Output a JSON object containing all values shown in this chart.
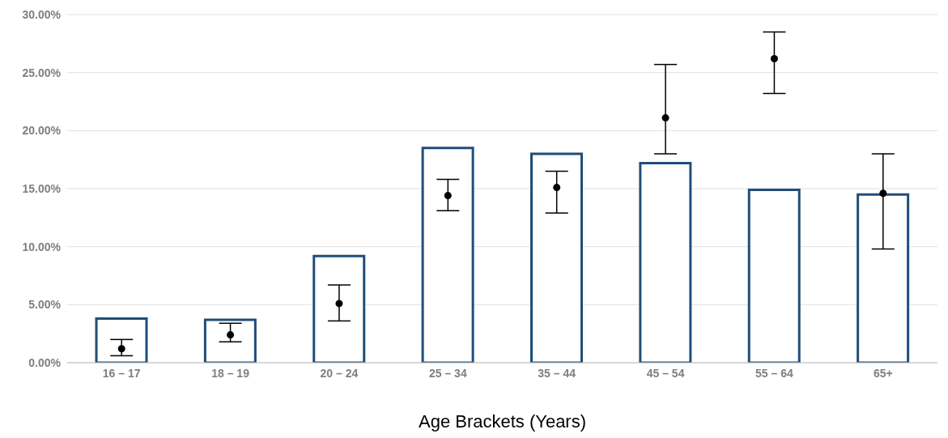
{
  "chart_data": {
    "type": "bar",
    "xlabel": "Age Brackets (Years)",
    "categories": [
      "16 – 17",
      "18 – 19",
      "20 – 24",
      "25 – 34",
      "35 – 44",
      "45 – 54",
      "55 – 64",
      "65+"
    ],
    "series": [
      {
        "color": "#1f4e79",
        "values": [
          3.8,
          3.7,
          9.2,
          18.5,
          18.0,
          17.2,
          14.9,
          14.5
        ]
      },
      {
        "type": "scatter",
        "color": "#000000",
        "marker": "circle",
        "values": [
          1.2,
          2.4,
          5.1,
          14.4,
          15.1,
          21.1,
          26.2,
          14.6
        ],
        "errors": [
          [
            0.6,
            2.0
          ],
          [
            1.8,
            3.4
          ],
          [
            3.6,
            6.7
          ],
          [
            13.1,
            15.8
          ],
          [
            12.9,
            16.5
          ],
          [
            18.0,
            25.7
          ],
          [
            23.2,
            28.5
          ],
          [
            9.8,
            18.0
          ]
        ]
      }
    ],
    "ylim": [
      0,
      30
    ],
    "yticks": [
      {
        "value": 0,
        "label": "0.00%"
      },
      {
        "value": 5,
        "label": "5.00%"
      },
      {
        "value": 10,
        "label": "10.00%"
      },
      {
        "value": 15,
        "label": "15.00%"
      },
      {
        "value": 20,
        "label": "20.00%"
      },
      {
        "value": 25,
        "label": "25.00%"
      },
      {
        "value": 30,
        "label": "30.00%"
      }
    ],
    "grid": "y",
    "legend": false
  }
}
